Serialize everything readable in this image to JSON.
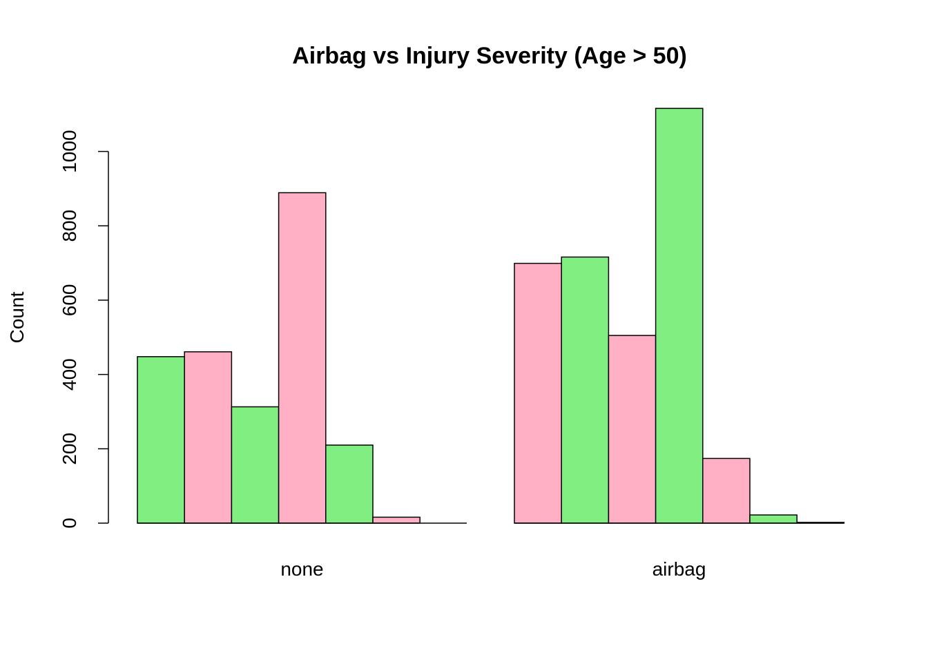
{
  "chart_data": {
    "type": "bar",
    "title": "Airbag vs Injury Severity (Age > 50)",
    "xlabel": "",
    "ylabel": "Count",
    "ylim": [
      0,
      1150
    ],
    "yticks": [
      0,
      200,
      400,
      600,
      800,
      1000
    ],
    "grid": false,
    "legend": "none",
    "groups": [
      {
        "label": "none",
        "values": [
          448,
          461,
          313,
          889,
          210,
          16
        ],
        "colors": [
          "#80EE80",
          "#FFB0C4",
          "#80EE80",
          "#FFB0C4",
          "#80EE80",
          "#FFB0C4"
        ]
      },
      {
        "label": "airbag",
        "values": [
          699,
          716,
          505,
          1116,
          174,
          22,
          2
        ],
        "colors": [
          "#FFB0C4",
          "#80EE80",
          "#FFB0C4",
          "#80EE80",
          "#FFB0C4",
          "#80EE80",
          "#FFB0C4"
        ]
      }
    ],
    "colors": {
      "green": "#80EE80",
      "pink": "#FFB0C4",
      "stroke": "#000000"
    }
  }
}
